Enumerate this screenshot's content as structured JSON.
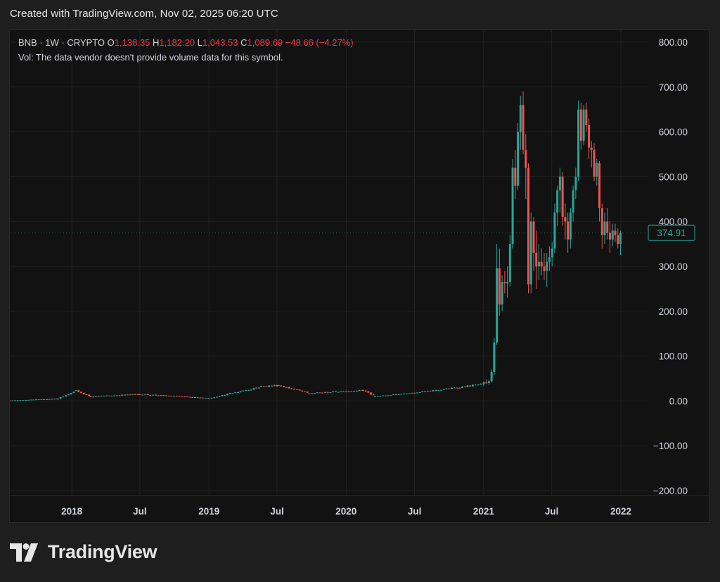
{
  "caption": "Created with TradingView.com, Nov 02, 2025 06:20 UTC",
  "legend": {
    "symbol": "BNB · 1W · CRYPTO",
    "o_key": "O",
    "o_val": "1,138.35",
    "h_key": "H",
    "h_val": "1,182.20",
    "l_key": "L",
    "l_val": "1,043.53",
    "c_key": "C",
    "c_val": "1,089.69",
    "change": "−48.66 (−4.27%)",
    "vol_line": "Vol: The data vendor doesn't provide volume data for this symbol."
  },
  "brand": {
    "name": "TradingView"
  },
  "colors": {
    "up": "#26a69a",
    "down": "#ef5350",
    "bg": "#121212",
    "grid": "#232323",
    "last_price": "#26a69a"
  },
  "chart_data": {
    "type": "candlestick",
    "y_ticks": [
      "800.00",
      "700.00",
      "600.00",
      "500.00",
      "400.00",
      "300.00",
      "200.00",
      "100.00",
      "0.00",
      "−100.00",
      "−200.00"
    ],
    "y_tick_values": [
      800,
      700,
      600,
      500,
      400,
      300,
      200,
      100,
      0,
      -100,
      -200
    ],
    "ylim": [
      -220,
      840
    ],
    "x_labels": [
      "2018",
      "Jul",
      "2019",
      "Jul",
      "2020",
      "Jul",
      "2021",
      "Jul",
      "2022"
    ],
    "x_label_dates": [
      "2018-01-01",
      "2018-07-01",
      "2019-01-01",
      "2019-07-01",
      "2020-01-01",
      "2020-07-01",
      "2021-01-01",
      "2021-07-01",
      "2022-01-01"
    ],
    "x_range": [
      "2017-07-20",
      "2022-03-15"
    ],
    "last_price": {
      "value": 374.91,
      "label": "374.91"
    },
    "grid": true,
    "segments": [
      {
        "start": "2017-07-20",
        "end": "2017-11-25",
        "from": 1,
        "to": 5,
        "vol": 0.08
      },
      {
        "start": "2017-11-25",
        "end": "2018-01-12",
        "from": 5,
        "to": 22,
        "vol": 0.12
      },
      {
        "start": "2018-01-12",
        "end": "2018-02-20",
        "from": 22,
        "to": 10,
        "vol": 0.1
      },
      {
        "start": "2018-02-20",
        "end": "2018-07-01",
        "from": 10,
        "to": 15,
        "vol": 0.07
      },
      {
        "start": "2018-07-01",
        "end": "2019-01-01",
        "from": 15,
        "to": 6,
        "vol": 0.07
      },
      {
        "start": "2019-01-01",
        "end": "2019-05-20",
        "from": 6,
        "to": 32,
        "vol": 0.08
      },
      {
        "start": "2019-05-20",
        "end": "2019-07-05",
        "from": 32,
        "to": 35,
        "vol": 0.06
      },
      {
        "start": "2019-07-05",
        "end": "2019-09-25",
        "from": 35,
        "to": 17,
        "vol": 0.06
      },
      {
        "start": "2019-09-25",
        "end": "2020-02-15",
        "from": 17,
        "to": 24,
        "vol": 0.05
      },
      {
        "start": "2020-02-15",
        "end": "2020-03-18",
        "from": 24,
        "to": 10,
        "vol": 0.12
      },
      {
        "start": "2020-03-18",
        "end": "2020-08-20",
        "from": 10,
        "to": 23,
        "vol": 0.05
      },
      {
        "start": "2020-08-20",
        "end": "2020-12-25",
        "from": 23,
        "to": 37,
        "vol": 0.05
      }
    ],
    "candles": [
      {
        "date": "2021-01-01",
        "o": 37,
        "h": 44,
        "l": 34,
        "c": 41
      },
      {
        "date": "2021-01-08",
        "o": 41,
        "h": 48,
        "l": 38,
        "c": 40
      },
      {
        "date": "2021-01-15",
        "o": 40,
        "h": 47,
        "l": 36,
        "c": 44
      },
      {
        "date": "2021-01-22",
        "o": 44,
        "h": 70,
        "l": 41,
        "c": 65
      },
      {
        "date": "2021-01-29",
        "o": 65,
        "h": 140,
        "l": 58,
        "c": 130
      },
      {
        "date": "2021-02-05",
        "o": 130,
        "h": 350,
        "l": 125,
        "c": 296
      },
      {
        "date": "2021-02-12",
        "o": 296,
        "h": 340,
        "l": 190,
        "c": 215
      },
      {
        "date": "2021-02-19",
        "o": 215,
        "h": 280,
        "l": 200,
        "c": 265
      },
      {
        "date": "2021-02-26",
        "o": 265,
        "h": 290,
        "l": 240,
        "c": 262
      },
      {
        "date": "2021-03-05",
        "o": 262,
        "h": 300,
        "l": 230,
        "c": 265
      },
      {
        "date": "2021-03-12",
        "o": 265,
        "h": 370,
        "l": 255,
        "c": 350
      },
      {
        "date": "2021-03-19",
        "o": 350,
        "h": 540,
        "l": 340,
        "c": 520
      },
      {
        "date": "2021-03-26",
        "o": 520,
        "h": 560,
        "l": 450,
        "c": 480
      },
      {
        "date": "2021-04-02",
        "o": 480,
        "h": 620,
        "l": 470,
        "c": 600
      },
      {
        "date": "2021-04-09",
        "o": 600,
        "h": 680,
        "l": 560,
        "c": 660
      },
      {
        "date": "2021-04-16",
        "o": 660,
        "h": 690,
        "l": 550,
        "c": 560
      },
      {
        "date": "2021-04-23",
        "o": 560,
        "h": 595,
        "l": 450,
        "c": 520
      },
      {
        "date": "2021-04-30",
        "o": 520,
        "h": 530,
        "l": 240,
        "c": 260
      },
      {
        "date": "2021-05-07",
        "o": 260,
        "h": 420,
        "l": 240,
        "c": 400
      },
      {
        "date": "2021-05-14",
        "o": 400,
        "h": 410,
        "l": 290,
        "c": 330
      },
      {
        "date": "2021-05-21",
        "o": 330,
        "h": 380,
        "l": 250,
        "c": 300
      },
      {
        "date": "2021-05-28",
        "o": 300,
        "h": 350,
        "l": 270,
        "c": 310
      },
      {
        "date": "2021-06-04",
        "o": 310,
        "h": 340,
        "l": 280,
        "c": 300
      },
      {
        "date": "2021-06-11",
        "o": 300,
        "h": 330,
        "l": 270,
        "c": 290
      },
      {
        "date": "2021-06-18",
        "o": 290,
        "h": 330,
        "l": 255,
        "c": 310
      },
      {
        "date": "2021-06-25",
        "o": 310,
        "h": 345,
        "l": 290,
        "c": 320
      },
      {
        "date": "2021-07-02",
        "o": 320,
        "h": 355,
        "l": 300,
        "c": 340
      },
      {
        "date": "2021-07-09",
        "o": 340,
        "h": 440,
        "l": 330,
        "c": 420
      },
      {
        "date": "2021-07-16",
        "o": 420,
        "h": 480,
        "l": 390,
        "c": 470
      },
      {
        "date": "2021-07-23",
        "o": 470,
        "h": 520,
        "l": 420,
        "c": 500
      },
      {
        "date": "2021-07-30",
        "o": 500,
        "h": 510,
        "l": 390,
        "c": 410
      },
      {
        "date": "2021-08-06",
        "o": 410,
        "h": 440,
        "l": 360,
        "c": 400
      },
      {
        "date": "2021-08-13",
        "o": 400,
        "h": 420,
        "l": 330,
        "c": 360
      },
      {
        "date": "2021-08-20",
        "o": 360,
        "h": 430,
        "l": 340,
        "c": 420
      },
      {
        "date": "2021-08-27",
        "o": 420,
        "h": 480,
        "l": 400,
        "c": 470
      },
      {
        "date": "2021-09-03",
        "o": 470,
        "h": 520,
        "l": 450,
        "c": 500
      },
      {
        "date": "2021-09-10",
        "o": 500,
        "h": 670,
        "l": 490,
        "c": 650
      },
      {
        "date": "2021-09-17",
        "o": 650,
        "h": 665,
        "l": 560,
        "c": 580
      },
      {
        "date": "2021-09-24",
        "o": 580,
        "h": 660,
        "l": 570,
        "c": 650
      },
      {
        "date": "2021-10-01",
        "o": 650,
        "h": 665,
        "l": 600,
        "c": 615
      },
      {
        "date": "2021-10-08",
        "o": 615,
        "h": 630,
        "l": 540,
        "c": 565
      },
      {
        "date": "2021-10-15",
        "o": 565,
        "h": 580,
        "l": 520,
        "c": 560
      },
      {
        "date": "2021-10-22",
        "o": 560,
        "h": 575,
        "l": 490,
        "c": 500
      },
      {
        "date": "2021-10-29",
        "o": 500,
        "h": 540,
        "l": 480,
        "c": 530
      },
      {
        "date": "2021-11-05",
        "o": 530,
        "h": 535,
        "l": 400,
        "c": 430
      },
      {
        "date": "2021-11-12",
        "o": 430,
        "h": 440,
        "l": 340,
        "c": 370
      },
      {
        "date": "2021-11-19",
        "o": 370,
        "h": 420,
        "l": 350,
        "c": 400
      },
      {
        "date": "2021-11-26",
        "o": 400,
        "h": 430,
        "l": 360,
        "c": 375
      },
      {
        "date": "2021-12-03",
        "o": 375,
        "h": 400,
        "l": 330,
        "c": 360
      },
      {
        "date": "2021-12-10",
        "o": 360,
        "h": 395,
        "l": 345,
        "c": 380
      },
      {
        "date": "2021-12-17",
        "o": 380,
        "h": 395,
        "l": 355,
        "c": 370
      },
      {
        "date": "2021-12-24",
        "o": 370,
        "h": 385,
        "l": 340,
        "c": 350
      },
      {
        "date": "2021-12-31",
        "o": 350,
        "h": 380,
        "l": 325,
        "c": 374.91
      }
    ]
  }
}
